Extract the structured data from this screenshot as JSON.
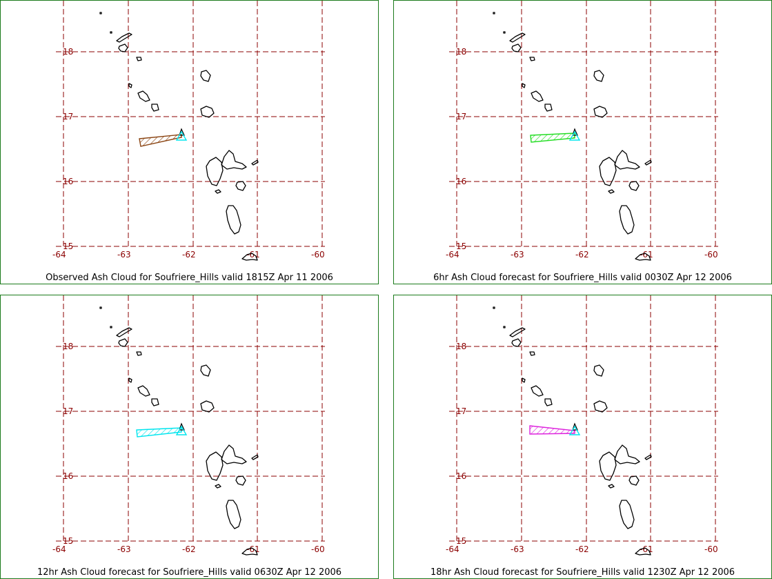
{
  "colors": {
    "grid": "#8b0000",
    "frame": "#1a7a1a",
    "coast": "#000000",
    "volcano": "#00e5ee"
  },
  "map": {
    "lat_labels": [
      "18",
      "17",
      "16",
      "15"
    ],
    "lon_labels": [
      "-64",
      "-63",
      "-62",
      "-61",
      "-60"
    ]
  },
  "panels": [
    {
      "caption": "Observed Ash Cloud for Soufriere_Hills valid 1815Z Apr 11 2006",
      "cloud_color": "#8b4513"
    },
    {
      "caption": "6hr Ash Cloud forecast for Soufriere_Hills valid 0030Z Apr 12 2006",
      "cloud_color": "#22dd22"
    },
    {
      "caption": "12hr Ash Cloud forecast for Soufriere_Hills valid 0630Z Apr 12 2006",
      "cloud_color": "#00e5ee"
    },
    {
      "caption": "18hr Ash Cloud forecast for Soufriere_Hills valid 1230Z Apr 12 2006",
      "cloud_color": "#dd22dd"
    }
  ]
}
